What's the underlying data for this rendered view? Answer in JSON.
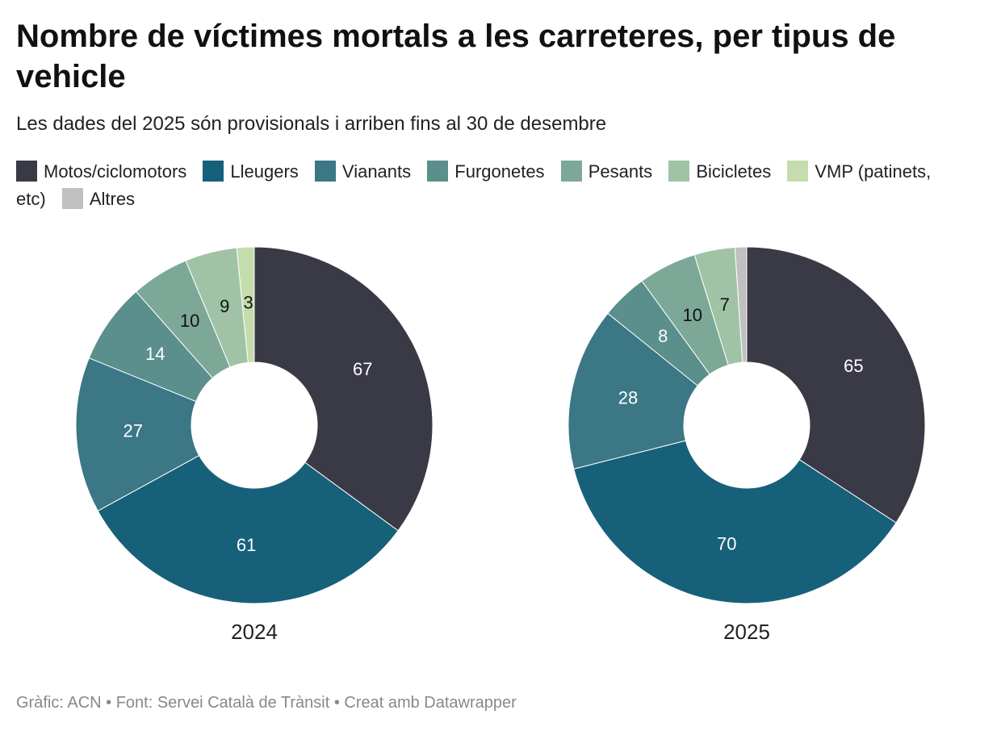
{
  "chart_data": {
    "type": "donut",
    "title": "Nombre de víctimes mortals a les carreteres, per tipus de vehicle",
    "subtitle": "Les dades del 2025 són provisionals i arriben fins al 30 de desembre",
    "categories": [
      "Motos/ciclomotors",
      "Lleugers",
      "Vianants",
      "Furgonetes",
      "Pesants",
      "Bicicletes",
      "VMP (patinets, etc)",
      "Altres"
    ],
    "colors": [
      "#393a45",
      "#17607a",
      "#3b7785",
      "#5a8f8c",
      "#7da898",
      "#a1c3a5",
      "#c5dcac",
      "#c0c0c0"
    ],
    "series": [
      {
        "name": "2024",
        "values": [
          67,
          61,
          27,
          14,
          10,
          9,
          3,
          0
        ],
        "value_labels": [
          "67",
          "61",
          "27",
          "14",
          "10",
          "9",
          "3",
          null
        ]
      },
      {
        "name": "2025",
        "values": [
          65,
          70,
          28,
          8,
          10,
          7,
          0,
          2
        ],
        "value_labels": [
          "65",
          "70",
          "28",
          "8",
          "10",
          "7",
          null,
          null
        ]
      }
    ],
    "source": "Gràfic: ACN • Font: Servei Català de Trànsit • Creat amb Datawrapper"
  }
}
